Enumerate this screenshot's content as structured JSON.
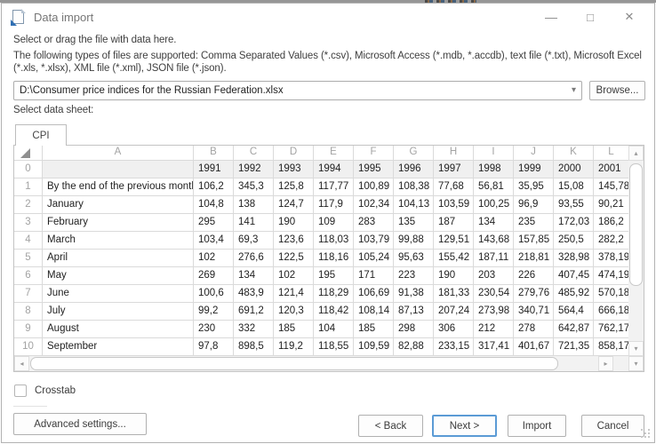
{
  "window": {
    "title": "Data import",
    "controls": {
      "minimize": "—",
      "maximize": "□",
      "close": "✕"
    }
  },
  "instructions": {
    "line1": "Select or drag the file with data here.",
    "line2": "The following types of files are supported: Comma Separated Values (*.csv), Microsoft Access (*.mdb, *.accdb), text file (*.txt), Microsoft Excel (*.xls, *.xlsx), XML file (*.xml), JSON file (*.json)."
  },
  "file_input": {
    "value": "D:\\Consumer price indices for the Russian Federation.xlsx",
    "caret": "▾",
    "browse_label": "Browse..."
  },
  "sheet_section": {
    "label": "Select data sheet:",
    "tabs": [
      {
        "label": "CPI",
        "active": true
      }
    ]
  },
  "grid": {
    "column_letters": [
      "A",
      "B",
      "C",
      "D",
      "E",
      "F",
      "G",
      "H",
      "I",
      "J",
      "K",
      "L"
    ],
    "rows": [
      {
        "num": "0",
        "label": "",
        "header": true,
        "values": [
          "1991",
          "1992",
          "1993",
          "1994",
          "1995",
          "1996",
          "1997",
          "1998",
          "1999",
          "2000",
          "2001"
        ]
      },
      {
        "num": "1",
        "label": "By the end of the previous month",
        "values": [
          "106,2",
          "345,3",
          "125,8",
          "117,77",
          "100,89",
          "108,38",
          "77,68",
          "56,81",
          "35,95",
          "15,08",
          "145,78"
        ]
      },
      {
        "num": "2",
        "label": "January",
        "values": [
          "104,8",
          "138",
          "124,7",
          "117,9",
          "102,34",
          "104,13",
          "103,59",
          "100,25",
          "96,9",
          "93,55",
          "90,21"
        ]
      },
      {
        "num": "3",
        "label": "February",
        "values": [
          "295",
          "141",
          "190",
          "109",
          "283",
          "135",
          "187",
          "134",
          "235",
          "172,03",
          "186,2"
        ]
      },
      {
        "num": "4",
        "label": "March",
        "values": [
          "103,4",
          "69,3",
          "123,6",
          "118,03",
          "103,79",
          "99,88",
          "129,51",
          "143,68",
          "157,85",
          "250,5",
          "282,2"
        ]
      },
      {
        "num": "5",
        "label": "April",
        "values": [
          "102",
          "276,6",
          "122,5",
          "118,16",
          "105,24",
          "95,63",
          "155,42",
          "187,11",
          "218,81",
          "328,98",
          "378,19"
        ]
      },
      {
        "num": "6",
        "label": "May",
        "values": [
          "269",
          "134",
          "102",
          "195",
          "171",
          "223",
          "190",
          "203",
          "226",
          "407,45",
          "474,19"
        ]
      },
      {
        "num": "7",
        "label": "June",
        "values": [
          "100,6",
          "483,9",
          "121,4",
          "118,29",
          "106,69",
          "91,38",
          "181,33",
          "230,54",
          "279,76",
          "485,92",
          "570,18"
        ]
      },
      {
        "num": "8",
        "label": "July",
        "values": [
          "99,2",
          "691,2",
          "120,3",
          "118,42",
          "108,14",
          "87,13",
          "207,24",
          "273,98",
          "340,71",
          "564,4",
          "666,18"
        ]
      },
      {
        "num": "9",
        "label": "August",
        "values": [
          "230",
          "332",
          "185",
          "104",
          "185",
          "298",
          "306",
          "212",
          "278",
          "642,87",
          "762,17"
        ]
      },
      {
        "num": "10",
        "label": "September",
        "values": [
          "97,8",
          "898,5",
          "119,2",
          "118,55",
          "109,59",
          "82,88",
          "233,15",
          "317,41",
          "401,67",
          "721,35",
          "858,17"
        ]
      }
    ],
    "scroll_glyphs": {
      "up": "▴",
      "down": "▾",
      "left": "◂",
      "right": "▸"
    }
  },
  "options": {
    "crosstab_label": "Crosstab",
    "crosstab_checked": false
  },
  "buttons": {
    "advanced": "Advanced settings...",
    "back": "< Back",
    "next": "Next >",
    "import": "Import",
    "cancel": "Cancel"
  },
  "colors": {
    "accent_blue": "#5b9bd5",
    "grid_line": "#dadada",
    "header_gray": "#a3a3a3"
  }
}
